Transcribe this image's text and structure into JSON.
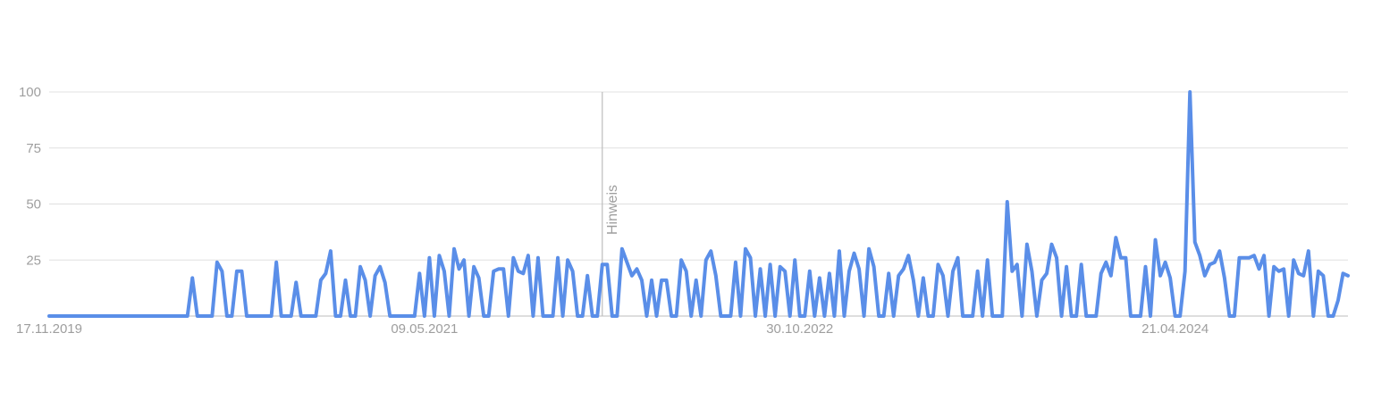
{
  "chart_data": {
    "type": "line",
    "x_tick_labels": [
      "17.11.2019",
      "09.05.2021",
      "30.10.2022",
      "21.04.2024"
    ],
    "y_ticks": [
      25,
      50,
      75,
      100
    ],
    "ylim": [
      0,
      100
    ],
    "grid": true,
    "series_color": "#5a8ee8",
    "annotation": {
      "label": "Hinweis",
      "x_index": 112
    },
    "series": [
      {
        "values": [
          0,
          0,
          0,
          0,
          0,
          0,
          0,
          0,
          0,
          0,
          0,
          0,
          0,
          0,
          0,
          0,
          0,
          0,
          0,
          0,
          0,
          0,
          0,
          0,
          0,
          0,
          0,
          0,
          0,
          17,
          0,
          0,
          0,
          0,
          24,
          20,
          0,
          0,
          20,
          20,
          0,
          0,
          0,
          0,
          0,
          0,
          24,
          0,
          0,
          0,
          15,
          0,
          0,
          0,
          0,
          16,
          19,
          29,
          0,
          0,
          16,
          0,
          0,
          22,
          16,
          0,
          18,
          22,
          15,
          0,
          0,
          0,
          0,
          0,
          0,
          19,
          0,
          26,
          0,
          27,
          20,
          0,
          30,
          21,
          25,
          0,
          22,
          17,
          0,
          0,
          20,
          21,
          21,
          0,
          26,
          20,
          19,
          27,
          0,
          26,
          0,
          0,
          0,
          26,
          0,
          25,
          20,
          0,
          0,
          18,
          0,
          0,
          23,
          23,
          0,
          0,
          30,
          24,
          18,
          21,
          16,
          0,
          16,
          0,
          16,
          16,
          0,
          0,
          25,
          20,
          0,
          16,
          0,
          25,
          29,
          18,
          0,
          0,
          0,
          24,
          0,
          30,
          26,
          0,
          21,
          0,
          23,
          0,
          22,
          20,
          0,
          25,
          0,
          0,
          20,
          0,
          17,
          0,
          19,
          0,
          29,
          0,
          20,
          28,
          21,
          0,
          30,
          22,
          0,
          0,
          19,
          0,
          18,
          21,
          27,
          16,
          0,
          17,
          0,
          0,
          23,
          18,
          0,
          20,
          26,
          0,
          0,
          0,
          20,
          0,
          25,
          0,
          0,
          0,
          51,
          20,
          23,
          0,
          32,
          20,
          0,
          16,
          19,
          32,
          26,
          0,
          22,
          0,
          0,
          23,
          0,
          0,
          0,
          19,
          24,
          18,
          35,
          26,
          26,
          0,
          0,
          0,
          22,
          0,
          34,
          18,
          24,
          17,
          0,
          0,
          20,
          100,
          33,
          27,
          18,
          23,
          24,
          29,
          17,
          0,
          0,
          26,
          26,
          26,
          27,
          21,
          27,
          0,
          22,
          20,
          21,
          0,
          25,
          19,
          18,
          29,
          0,
          20,
          18,
          0,
          0,
          7,
          19,
          18
        ]
      }
    ]
  }
}
